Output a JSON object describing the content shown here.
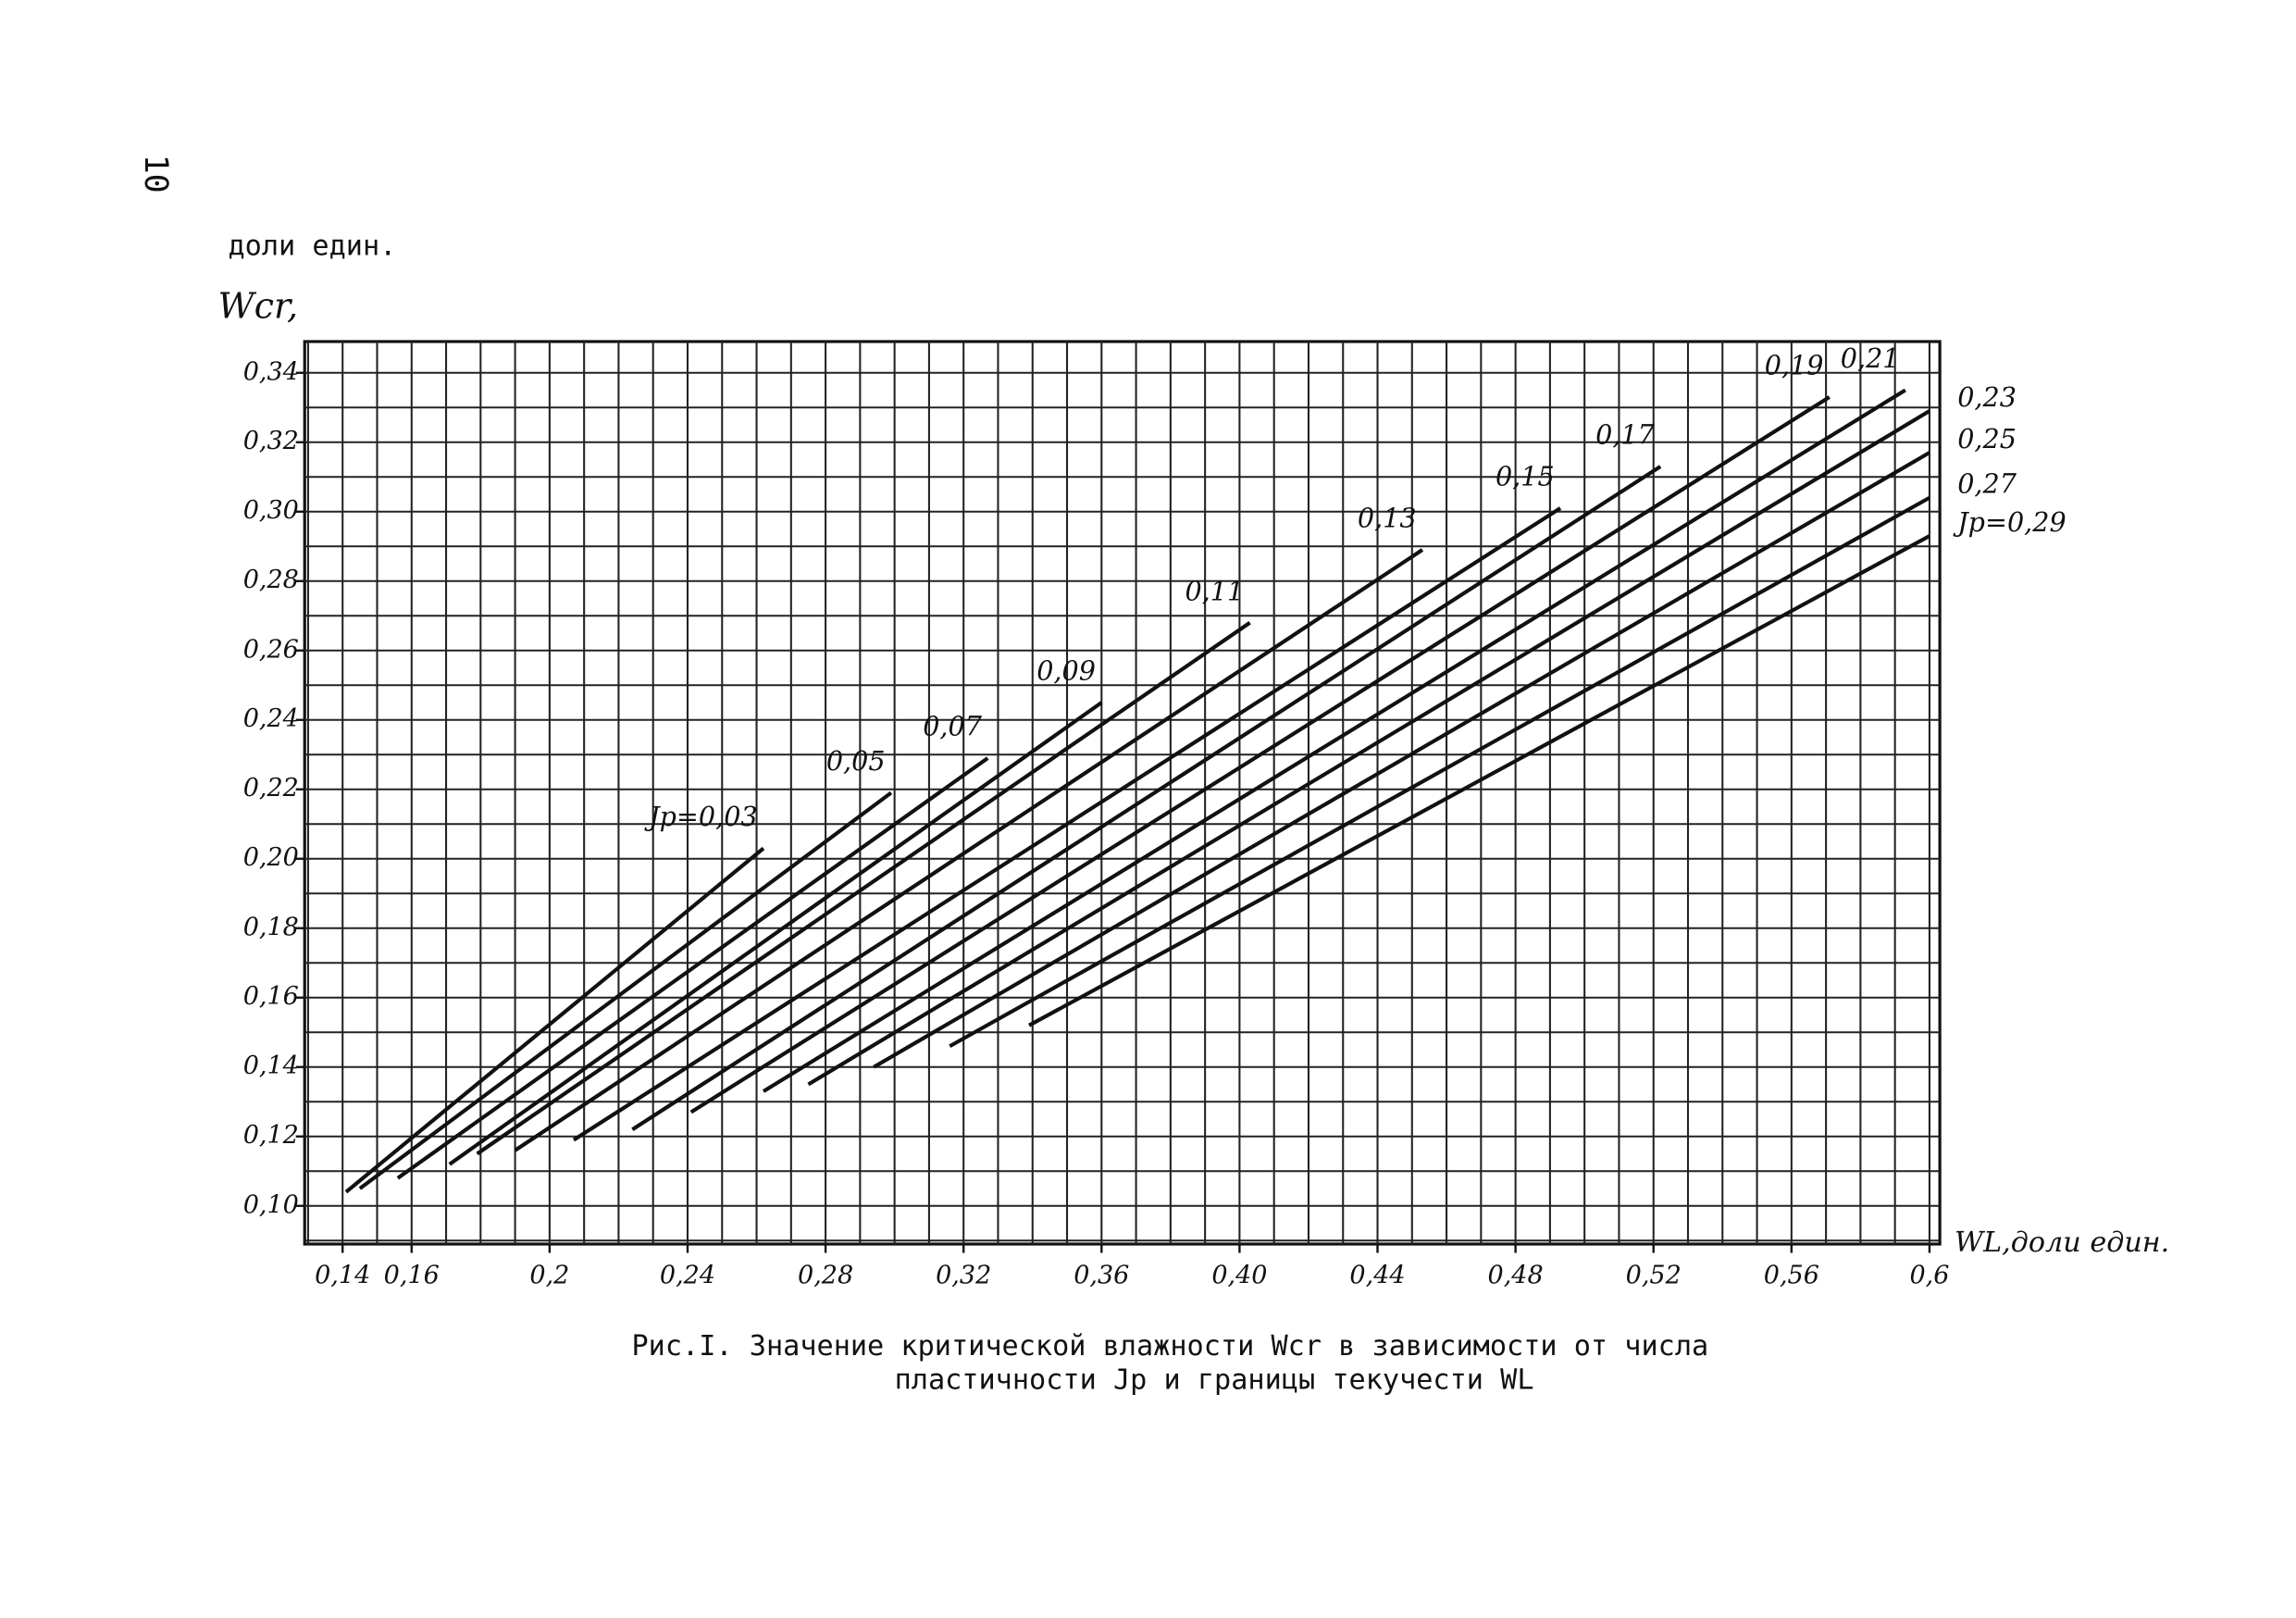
{
  "page_number": "10",
  "chart_data": {
    "type": "line",
    "unit_label": "доли един.",
    "y_label": "Wcr,",
    "x_label": "WL,доли един.",
    "caption": [
      "Рис.I. Значение критической влажности Wcr в зависимости от числа",
      "пластичности Jp и границы текучести WL"
    ],
    "xlim": [
      0.129,
      0.603
    ],
    "ylim": [
      0.089,
      0.349
    ],
    "xticks": [
      {
        "value": 0.14,
        "label": "0,14"
      },
      {
        "value": 0.16,
        "label": "0,16"
      },
      {
        "value": 0.2,
        "label": "0,2"
      },
      {
        "value": 0.24,
        "label": "0,24"
      },
      {
        "value": 0.28,
        "label": "0,28"
      },
      {
        "value": 0.32,
        "label": "0,32"
      },
      {
        "value": 0.36,
        "label": "0,36"
      },
      {
        "value": 0.4,
        "label": "0,40"
      },
      {
        "value": 0.44,
        "label": "0,44"
      },
      {
        "value": 0.48,
        "label": "0,48"
      },
      {
        "value": 0.52,
        "label": "0,52"
      },
      {
        "value": 0.56,
        "label": "0,56"
      },
      {
        "value": 0.6,
        "label": "0,6"
      }
    ],
    "yticks": [
      {
        "value": 0.1,
        "label": "0,10"
      },
      {
        "value": 0.12,
        "label": "0,12"
      },
      {
        "value": 0.14,
        "label": "0,14"
      },
      {
        "value": 0.16,
        "label": "0,16"
      },
      {
        "value": 0.18,
        "label": "0,18"
      },
      {
        "value": 0.2,
        "label": "0,20"
      },
      {
        "value": 0.22,
        "label": "0,22"
      },
      {
        "value": 0.24,
        "label": "0,24"
      },
      {
        "value": 0.26,
        "label": "0,26"
      },
      {
        "value": 0.28,
        "label": "0,28"
      },
      {
        "value": 0.3,
        "label": "0,30"
      },
      {
        "value": 0.32,
        "label": "0,32"
      },
      {
        "value": 0.34,
        "label": "0,34"
      }
    ],
    "xminorticks": [
      0.13,
      0.14,
      0.15,
      0.16,
      0.17,
      0.18,
      0.19,
      0.2,
      0.21,
      0.22,
      0.23,
      0.24,
      0.25,
      0.26,
      0.27,
      0.28,
      0.29,
      0.3,
      0.31,
      0.32,
      0.33,
      0.34,
      0.35,
      0.36,
      0.37,
      0.38,
      0.39,
      0.4,
      0.41,
      0.42,
      0.43,
      0.44,
      0.45,
      0.46,
      0.47,
      0.48,
      0.49,
      0.5,
      0.51,
      0.52,
      0.53,
      0.54,
      0.55,
      0.56,
      0.57,
      0.58,
      0.59,
      0.6
    ],
    "yminorticks": [
      0.09,
      0.1,
      0.11,
      0.12,
      0.13,
      0.14,
      0.15,
      0.16,
      0.17,
      0.18,
      0.19,
      0.2,
      0.21,
      0.22,
      0.23,
      0.24,
      0.25,
      0.26,
      0.27,
      0.28,
      0.29,
      0.3,
      0.31,
      0.32,
      0.33,
      0.34
    ],
    "grid": true,
    "color": "#111111",
    "series": [
      {
        "name": "Jp=0,03",
        "x": [
          0.141,
          0.262
        ],
        "values": [
          0.104,
          0.203
        ]
      },
      {
        "name": "0,05",
        "x": [
          0.145,
          0.299
        ],
        "values": [
          0.105,
          0.219
        ]
      },
      {
        "name": "0,07",
        "x": [
          0.156,
          0.327
        ],
        "values": [
          0.108,
          0.229
        ]
      },
      {
        "name": "0,09",
        "x": [
          0.171,
          0.36
        ],
        "values": [
          0.112,
          0.245
        ]
      },
      {
        "name": "0,11",
        "x": [
          0.179,
          0.403
        ],
        "values": [
          0.115,
          0.268
        ]
      },
      {
        "name": "0,13",
        "x": [
          0.19,
          0.453
        ],
        "values": [
          0.116,
          0.289
        ]
      },
      {
        "name": "0,15",
        "x": [
          0.207,
          0.493
        ],
        "values": [
          0.119,
          0.301
        ]
      },
      {
        "name": "0,17",
        "x": [
          0.224,
          0.522
        ],
        "values": [
          0.122,
          0.313
        ]
      },
      {
        "name": "0,19",
        "x": [
          0.241,
          0.571
        ],
        "values": [
          0.127,
          0.333
        ]
      },
      {
        "name": "0,21",
        "x": [
          0.262,
          0.593
        ],
        "values": [
          0.133,
          0.335
        ]
      },
      {
        "name": "0,23",
        "x": [
          0.275,
          0.6
        ],
        "values": [
          0.135,
          0.329
        ]
      },
      {
        "name": "0,25",
        "x": [
          0.294,
          0.6
        ],
        "values": [
          0.14,
          0.317
        ]
      },
      {
        "name": "0,27",
        "x": [
          0.316,
          0.6
        ],
        "values": [
          0.146,
          0.304
        ]
      },
      {
        "name": "Jp=0,29",
        "x": [
          0.339,
          0.6
        ],
        "values": [
          0.152,
          0.293
        ]
      }
    ]
  }
}
